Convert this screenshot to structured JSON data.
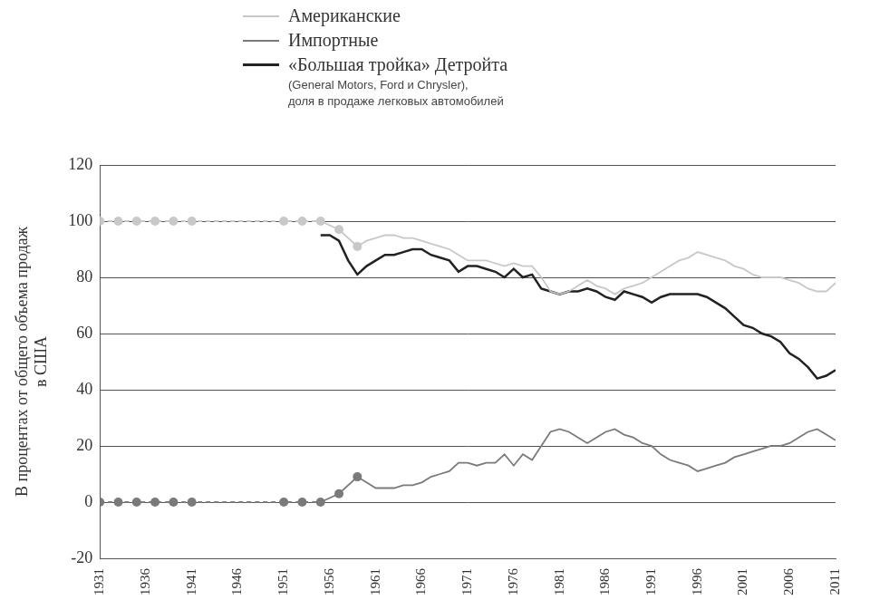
{
  "chart_data": {
    "type": "line",
    "y_label": [
      "В процентах от общего объема продаж",
      "в США"
    ],
    "annotations": [
      "(General Motors, Ford и Chrysler),",
      "доля в продаже легковых автомобилей"
    ],
    "legend": "top",
    "grid": true,
    "xlim": [
      1931,
      2011
    ],
    "xticks": [
      1931,
      1936,
      1941,
      1946,
      1951,
      1956,
      1961,
      1966,
      1971,
      1976,
      1981,
      1986,
      1991,
      1996,
      2001,
      2006,
      2011
    ],
    "ylim": [
      -20,
      120
    ],
    "yticks": [
      -20,
      0,
      20,
      40,
      60,
      80,
      100,
      120
    ],
    "x": [
      1931,
      1933,
      1935,
      1937,
      1939,
      1941,
      1951,
      1953,
      1955,
      1956,
      1957,
      1958,
      1959,
      1960,
      1961,
      1962,
      1963,
      1964,
      1965,
      1966,
      1967,
      1968,
      1969,
      1970,
      1971,
      1972,
      1973,
      1974,
      1975,
      1976,
      1977,
      1978,
      1979,
      1980,
      1981,
      1982,
      1983,
      1984,
      1985,
      1986,
      1987,
      1988,
      1989,
      1990,
      1991,
      1992,
      1993,
      1994,
      1995,
      1996,
      1997,
      1998,
      1999,
      2000,
      2001,
      2002,
      2003,
      2004,
      2005,
      2006,
      2007,
      2008,
      2009,
      2010,
      2011
    ],
    "series": [
      {
        "name": "Американские",
        "color": "#c8c8c8",
        "values": [
          100,
          100,
          100,
          100,
          100,
          100,
          100,
          100,
          100,
          null,
          97,
          null,
          91,
          93,
          94,
          95,
          95,
          94,
          94,
          93,
          92,
          91,
          90,
          88,
          86,
          86,
          86,
          85,
          84,
          85,
          84,
          84,
          80,
          75,
          74,
          75,
          77,
          79,
          77,
          76,
          74,
          76,
          77,
          78,
          80,
          82,
          84,
          86,
          87,
          89,
          88,
          87,
          86,
          84,
          83,
          81,
          80,
          80,
          80,
          79,
          78,
          76,
          75,
          75,
          78
        ]
      },
      {
        "name": "Импортные",
        "color": "#7a7a7a",
        "values": [
          0,
          0,
          0,
          0,
          0,
          0,
          0,
          0,
          0,
          null,
          3,
          null,
          9,
          7,
          5,
          5,
          5,
          6,
          6,
          7,
          9,
          10,
          11,
          14,
          14,
          13,
          14,
          14,
          17,
          13,
          17,
          15,
          20,
          25,
          26,
          25,
          23,
          21,
          23,
          25,
          26,
          24,
          23,
          21,
          20,
          17,
          15,
          14,
          13,
          11,
          12,
          13,
          14,
          16,
          17,
          18,
          19,
          20,
          20,
          21,
          23,
          25,
          26,
          24,
          22
        ]
      },
      {
        "name": "«Большая тройка» Детройта",
        "color": "#222222",
        "values": [
          null,
          null,
          null,
          null,
          null,
          null,
          null,
          null,
          95,
          95,
          93,
          86,
          81,
          84,
          86,
          88,
          88,
          89,
          90,
          90,
          88,
          87,
          86,
          82,
          84,
          84,
          83,
          82,
          80,
          83,
          80,
          81,
          76,
          75,
          74,
          75,
          75,
          76,
          75,
          73,
          72,
          75,
          74,
          73,
          71,
          73,
          74,
          74,
          74,
          74,
          73,
          71,
          69,
          66,
          63,
          62,
          60,
          59,
          57,
          53,
          51,
          48,
          44,
          45,
          47
        ]
      }
    ]
  }
}
